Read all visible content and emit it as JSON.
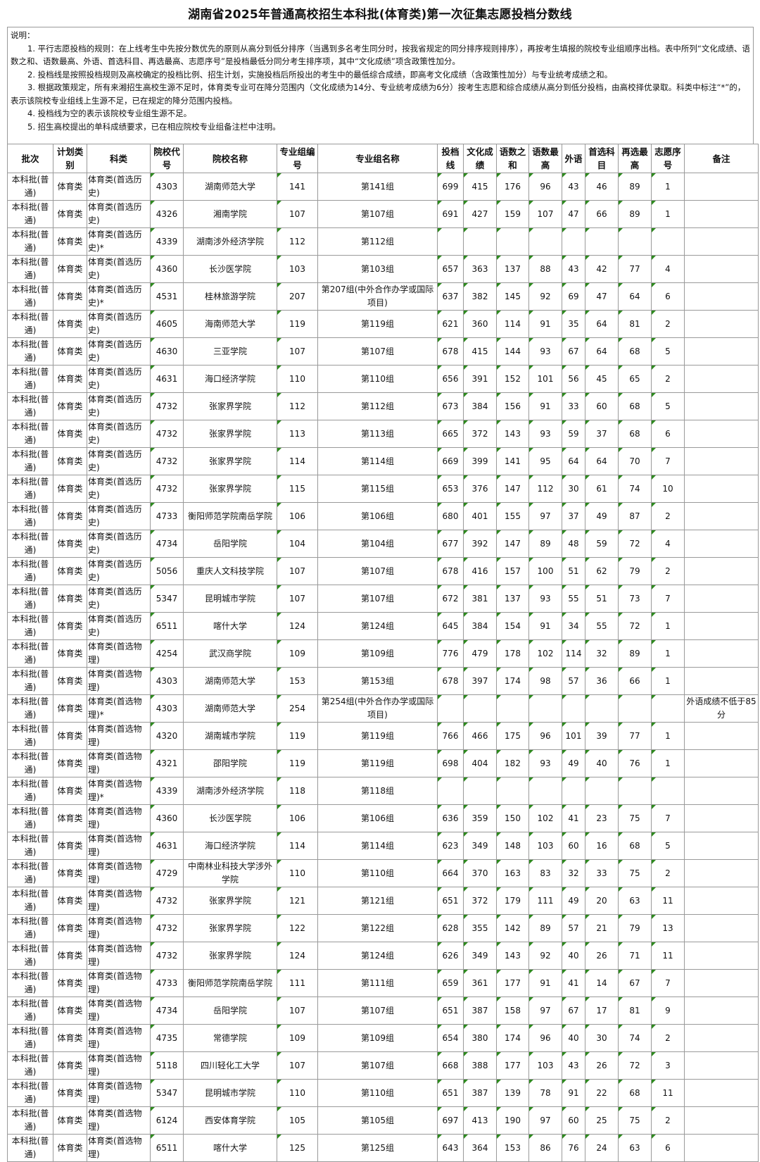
{
  "title": "湖南省2025年普通高校招生本科批(体育类)第一次征集志愿投档分数线",
  "notes": {
    "heading": "说明：",
    "items": [
      "1. 平行志愿投档的规则：在上线考生中先按分数优先的原则从高分到低分排序（当遇到多名考生同分时，按我省规定的同分排序规则排序），再按考生填报的院校专业组顺序出档。表中所列“文化成绩、语数之和、语数最高、外语、首选科目、再选最高、志愿序号”是投档最低分同分考生排序项，其中“文化成绩”项含政策性加分。",
      "2. 投档线是按照投档规则及高校确定的投档比例、招生计划，实施投档后所投出的考生中的最低综合成绩，即高考文化成绩（含政策性加分）与专业统考成绩之和。",
      "3. 根据政策规定，所有来湘招生高校生源不足时，体育类专业可在降分范围内（文化成绩为14分、专业统考成绩为6分）按考生志愿和综合成绩从高分到低分投档，由高校择优录取。科类中标注“*”的，表示该院校专业组线上生源不足，已在规定的降分范围内投档。",
      "4. 投档线为空的表示该院校专业组生源不足。",
      "5. 招生高校提出的单科成绩要求，已在相应院校专业组备注栏中注明。"
    ]
  },
  "columns": [
    "批次",
    "计划类别",
    "科类",
    "院校代号",
    "院校名称",
    "专业组编号",
    "专业组名称",
    "投档线",
    "文化成绩",
    "语数之和",
    "语数最高",
    "外语",
    "首选科目",
    "再选最高",
    "志愿序号",
    "备注"
  ],
  "marker_color": "#2d8a1e",
  "rows": [
    [
      "本科批(普通)",
      "体育类",
      "体育类(首选历史)",
      "4303",
      "湖南师范大学",
      "141",
      "第141组",
      "699",
      "415",
      "176",
      "96",
      "43",
      "46",
      "89",
      "1",
      ""
    ],
    [
      "本科批(普通)",
      "体育类",
      "体育类(首选历史)",
      "4326",
      "湘南学院",
      "107",
      "第107组",
      "691",
      "427",
      "159",
      "107",
      "47",
      "66",
      "89",
      "1",
      ""
    ],
    [
      "本科批(普通)",
      "体育类",
      "体育类(首选历史)*",
      "4339",
      "湖南涉外经济学院",
      "112",
      "第112组",
      "",
      "",
      "",
      "",
      "",
      "",
      "",
      "",
      ""
    ],
    [
      "本科批(普通)",
      "体育类",
      "体育类(首选历史)",
      "4360",
      "长沙医学院",
      "103",
      "第103组",
      "657",
      "363",
      "137",
      "88",
      "43",
      "42",
      "77",
      "4",
      ""
    ],
    [
      "本科批(普通)",
      "体育类",
      "体育类(首选历史)*",
      "4531",
      "桂林旅游学院",
      "207",
      "第207组(中外合作办学或国际项目)",
      "637",
      "382",
      "145",
      "92",
      "69",
      "47",
      "64",
      "6",
      ""
    ],
    [
      "本科批(普通)",
      "体育类",
      "体育类(首选历史)",
      "4605",
      "海南师范大学",
      "119",
      "第119组",
      "621",
      "360",
      "114",
      "91",
      "35",
      "64",
      "81",
      "2",
      ""
    ],
    [
      "本科批(普通)",
      "体育类",
      "体育类(首选历史)",
      "4630",
      "三亚学院",
      "107",
      "第107组",
      "678",
      "415",
      "144",
      "93",
      "67",
      "64",
      "68",
      "5",
      ""
    ],
    [
      "本科批(普通)",
      "体育类",
      "体育类(首选历史)",
      "4631",
      "海口经济学院",
      "110",
      "第110组",
      "656",
      "391",
      "152",
      "101",
      "56",
      "45",
      "65",
      "2",
      ""
    ],
    [
      "本科批(普通)",
      "体育类",
      "体育类(首选历史)",
      "4732",
      "张家界学院",
      "112",
      "第112组",
      "673",
      "384",
      "156",
      "91",
      "33",
      "60",
      "68",
      "5",
      ""
    ],
    [
      "本科批(普通)",
      "体育类",
      "体育类(首选历史)",
      "4732",
      "张家界学院",
      "113",
      "第113组",
      "665",
      "372",
      "143",
      "93",
      "59",
      "37",
      "68",
      "6",
      ""
    ],
    [
      "本科批(普通)",
      "体育类",
      "体育类(首选历史)",
      "4732",
      "张家界学院",
      "114",
      "第114组",
      "669",
      "399",
      "141",
      "95",
      "64",
      "64",
      "70",
      "7",
      ""
    ],
    [
      "本科批(普通)",
      "体育类",
      "体育类(首选历史)",
      "4732",
      "张家界学院",
      "115",
      "第115组",
      "653",
      "376",
      "147",
      "112",
      "30",
      "61",
      "74",
      "10",
      ""
    ],
    [
      "本科批(普通)",
      "体育类",
      "体育类(首选历史)",
      "4733",
      "衡阳师范学院南岳学院",
      "106",
      "第106组",
      "680",
      "401",
      "155",
      "97",
      "37",
      "49",
      "87",
      "2",
      ""
    ],
    [
      "本科批(普通)",
      "体育类",
      "体育类(首选历史)",
      "4734",
      "岳阳学院",
      "104",
      "第104组",
      "677",
      "392",
      "147",
      "89",
      "48",
      "59",
      "72",
      "4",
      ""
    ],
    [
      "本科批(普通)",
      "体育类",
      "体育类(首选历史)",
      "5056",
      "重庆人文科技学院",
      "107",
      "第107组",
      "678",
      "416",
      "157",
      "100",
      "51",
      "62",
      "79",
      "2",
      ""
    ],
    [
      "本科批(普通)",
      "体育类",
      "体育类(首选历史)",
      "5347",
      "昆明城市学院",
      "107",
      "第107组",
      "672",
      "381",
      "137",
      "93",
      "55",
      "51",
      "73",
      "7",
      ""
    ],
    [
      "本科批(普通)",
      "体育类",
      "体育类(首选历史)",
      "6511",
      "喀什大学",
      "124",
      "第124组",
      "645",
      "384",
      "154",
      "91",
      "34",
      "55",
      "72",
      "1",
      ""
    ],
    [
      "本科批(普通)",
      "体育类",
      "体育类(首选物理)",
      "4254",
      "武汉商学院",
      "109",
      "第109组",
      "776",
      "479",
      "178",
      "102",
      "114",
      "32",
      "89",
      "1",
      ""
    ],
    [
      "本科批(普通)",
      "体育类",
      "体育类(首选物理)",
      "4303",
      "湖南师范大学",
      "153",
      "第153组",
      "678",
      "397",
      "174",
      "98",
      "57",
      "36",
      "66",
      "1",
      ""
    ],
    [
      "本科批(普通)",
      "体育类",
      "体育类(首选物理)*",
      "4303",
      "湖南师范大学",
      "254",
      "第254组(中外合作办学或国际项目)",
      "",
      "",
      "",
      "",
      "",
      "",
      "",
      "",
      "外语成绩不低于85分"
    ],
    [
      "本科批(普通)",
      "体育类",
      "体育类(首选物理)",
      "4320",
      "湖南城市学院",
      "119",
      "第119组",
      "766",
      "466",
      "175",
      "96",
      "101",
      "39",
      "77",
      "1",
      ""
    ],
    [
      "本科批(普通)",
      "体育类",
      "体育类(首选物理)",
      "4321",
      "邵阳学院",
      "119",
      "第119组",
      "698",
      "404",
      "182",
      "93",
      "49",
      "40",
      "76",
      "1",
      ""
    ],
    [
      "本科批(普通)",
      "体育类",
      "体育类(首选物理)*",
      "4339",
      "湖南涉外经济学院",
      "118",
      "第118组",
      "",
      "",
      "",
      "",
      "",
      "",
      "",
      "",
      ""
    ],
    [
      "本科批(普通)",
      "体育类",
      "体育类(首选物理)",
      "4360",
      "长沙医学院",
      "106",
      "第106组",
      "636",
      "359",
      "150",
      "102",
      "41",
      "23",
      "75",
      "7",
      ""
    ],
    [
      "本科批(普通)",
      "体育类",
      "体育类(首选物理)",
      "4631",
      "海口经济学院",
      "114",
      "第114组",
      "623",
      "349",
      "148",
      "103",
      "60",
      "16",
      "68",
      "5",
      ""
    ],
    [
      "本科批(普通)",
      "体育类",
      "体育类(首选物理)",
      "4729",
      "中南林业科技大学涉外学院",
      "110",
      "第110组",
      "664",
      "370",
      "163",
      "83",
      "32",
      "33",
      "75",
      "2",
      ""
    ],
    [
      "本科批(普通)",
      "体育类",
      "体育类(首选物理)",
      "4732",
      "张家界学院",
      "121",
      "第121组",
      "651",
      "372",
      "179",
      "111",
      "49",
      "20",
      "63",
      "11",
      ""
    ],
    [
      "本科批(普通)",
      "体育类",
      "体育类(首选物理)",
      "4732",
      "张家界学院",
      "122",
      "第122组",
      "628",
      "355",
      "142",
      "89",
      "57",
      "21",
      "79",
      "13",
      ""
    ],
    [
      "本科批(普通)",
      "体育类",
      "体育类(首选物理)",
      "4732",
      "张家界学院",
      "124",
      "第124组",
      "626",
      "349",
      "143",
      "92",
      "40",
      "26",
      "71",
      "11",
      ""
    ],
    [
      "本科批(普通)",
      "体育类",
      "体育类(首选物理)",
      "4733",
      "衡阳师范学院南岳学院",
      "111",
      "第111组",
      "659",
      "361",
      "177",
      "91",
      "41",
      "14",
      "67",
      "7",
      ""
    ],
    [
      "本科批(普通)",
      "体育类",
      "体育类(首选物理)",
      "4734",
      "岳阳学院",
      "107",
      "第107组",
      "651",
      "387",
      "158",
      "97",
      "67",
      "17",
      "81",
      "9",
      ""
    ],
    [
      "本科批(普通)",
      "体育类",
      "体育类(首选物理)",
      "4735",
      "常德学院",
      "109",
      "第109组",
      "654",
      "380",
      "174",
      "96",
      "40",
      "30",
      "74",
      "2",
      ""
    ],
    [
      "本科批(普通)",
      "体育类",
      "体育类(首选物理)",
      "5118",
      "四川轻化工大学",
      "107",
      "第107组",
      "668",
      "388",
      "177",
      "103",
      "43",
      "26",
      "72",
      "3",
      ""
    ],
    [
      "本科批(普通)",
      "体育类",
      "体育类(首选物理)",
      "5347",
      "昆明城市学院",
      "110",
      "第110组",
      "651",
      "387",
      "139",
      "78",
      "91",
      "22",
      "68",
      "11",
      ""
    ],
    [
      "本科批(普通)",
      "体育类",
      "体育类(首选物理)",
      "6124",
      "西安体育学院",
      "105",
      "第105组",
      "697",
      "413",
      "190",
      "97",
      "60",
      "25",
      "75",
      "2",
      ""
    ],
    [
      "本科批(普通)",
      "体育类",
      "体育类(首选物理)",
      "6511",
      "喀什大学",
      "125",
      "第125组",
      "643",
      "364",
      "153",
      "86",
      "76",
      "24",
      "63",
      "6",
      ""
    ]
  ]
}
